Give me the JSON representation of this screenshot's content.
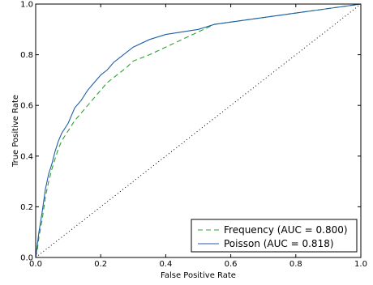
{
  "chart_data": {
    "type": "line",
    "title": "",
    "xlabel": "False Positive Rate",
    "ylabel": "True Positive Rate",
    "xlim": [
      0,
      1
    ],
    "ylim": [
      0,
      1
    ],
    "xticks": [
      "0.0",
      "0.2",
      "0.4",
      "0.6",
      "0.8",
      "1.0"
    ],
    "yticks": [
      "0.0",
      "0.2",
      "0.4",
      "0.6",
      "0.8",
      "1.0"
    ],
    "grid": false,
    "legend_position": "bottom-right",
    "series": [
      {
        "name": "Frequency (AUC = 0.800)",
        "color": "#2ca02c",
        "style": "dashed",
        "x": [
          0.0,
          0.005,
          0.01,
          0.02,
          0.03,
          0.04,
          0.05,
          0.06,
          0.07,
          0.08,
          0.1,
          0.12,
          0.14,
          0.16,
          0.18,
          0.2,
          0.22,
          0.24,
          0.26,
          0.28,
          0.3,
          0.35,
          0.4,
          0.45,
          0.5,
          0.55,
          1.0
        ],
        "y": [
          0.0,
          0.03,
          0.08,
          0.15,
          0.24,
          0.3,
          0.35,
          0.39,
          0.43,
          0.46,
          0.5,
          0.54,
          0.57,
          0.6,
          0.63,
          0.66,
          0.69,
          0.71,
          0.73,
          0.75,
          0.775,
          0.8,
          0.83,
          0.86,
          0.89,
          0.92,
          1.0
        ]
      },
      {
        "name": "Poisson (AUC = 0.818)",
        "color": "#1f5fa8",
        "style": "solid",
        "x": [
          0.0,
          0.005,
          0.01,
          0.02,
          0.03,
          0.04,
          0.05,
          0.06,
          0.07,
          0.08,
          0.1,
          0.12,
          0.14,
          0.16,
          0.18,
          0.2,
          0.22,
          0.24,
          0.26,
          0.28,
          0.3,
          0.35,
          0.4,
          0.45,
          0.5,
          0.55,
          1.0
        ],
        "y": [
          0.0,
          0.05,
          0.1,
          0.18,
          0.27,
          0.33,
          0.37,
          0.42,
          0.46,
          0.49,
          0.53,
          0.59,
          0.62,
          0.66,
          0.69,
          0.72,
          0.74,
          0.77,
          0.79,
          0.81,
          0.83,
          0.86,
          0.88,
          0.89,
          0.9,
          0.92,
          1.0
        ]
      },
      {
        "name": "",
        "color": "#000000",
        "style": "dotted",
        "x": [
          0,
          1
        ],
        "y": [
          0,
          1
        ]
      }
    ]
  }
}
